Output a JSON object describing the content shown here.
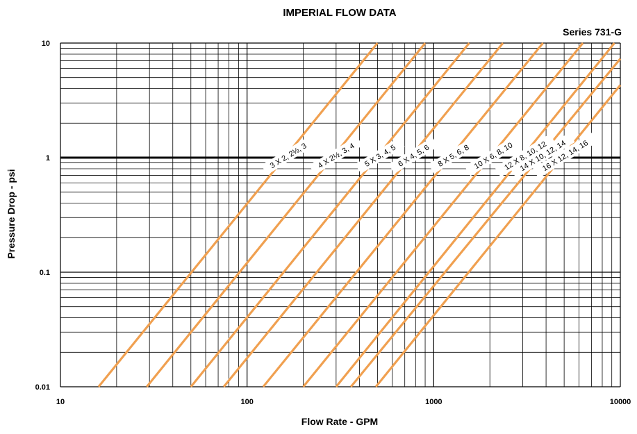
{
  "chart_data": {
    "type": "line",
    "title": "IMPERIAL FLOW DATA",
    "subtitle": "Series 731-G",
    "xlabel": "Flow Rate - GPM",
    "ylabel": "Pressure Drop - psi",
    "xscale": "log",
    "yscale": "log",
    "xlim": [
      10,
      10000
    ],
    "ylim": [
      0.01,
      10
    ],
    "x_ticks": [
      "10",
      "100",
      "1000",
      "10000"
    ],
    "y_ticks": [
      "0.01",
      "0.1",
      "1",
      "10"
    ],
    "grid": true,
    "line_color": "#f0a050",
    "series": [
      {
        "name": "3 X 2, 2½, 3",
        "x": [
          16,
          500
        ],
        "y": [
          0.01,
          10
        ]
      },
      {
        "name": "4 X 2½, 3, 4",
        "x": [
          29,
          900
        ],
        "y": [
          0.01,
          10
        ]
      },
      {
        "name": "5 X 3, 4, 5",
        "x": [
          50,
          1550
        ],
        "y": [
          0.01,
          10
        ]
      },
      {
        "name": "6 X 4, 5, 6",
        "x": [
          75,
          2350
        ],
        "y": [
          0.01,
          10
        ]
      },
      {
        "name": "8 X 5, 6, 8",
        "x": [
          122,
          3850
        ],
        "y": [
          0.01,
          10
        ]
      },
      {
        "name": "10 X 6, 8, 10",
        "x": [
          200,
          6300
        ],
        "y": [
          0.01,
          10
        ]
      },
      {
        "name": "12 X 8, 10, 12",
        "x": [
          300,
          9300
        ],
        "y": [
          0.01,
          10
        ]
      },
      {
        "name": "14 X 10, 12, 14",
        "x": [
          360,
          10000
        ],
        "y": [
          0.01,
          7.3
        ]
      },
      {
        "name": "16 X 12, 14, 16",
        "x": [
          490,
          10000
        ],
        "y": [
          0.01,
          4.3
        ]
      }
    ]
  }
}
